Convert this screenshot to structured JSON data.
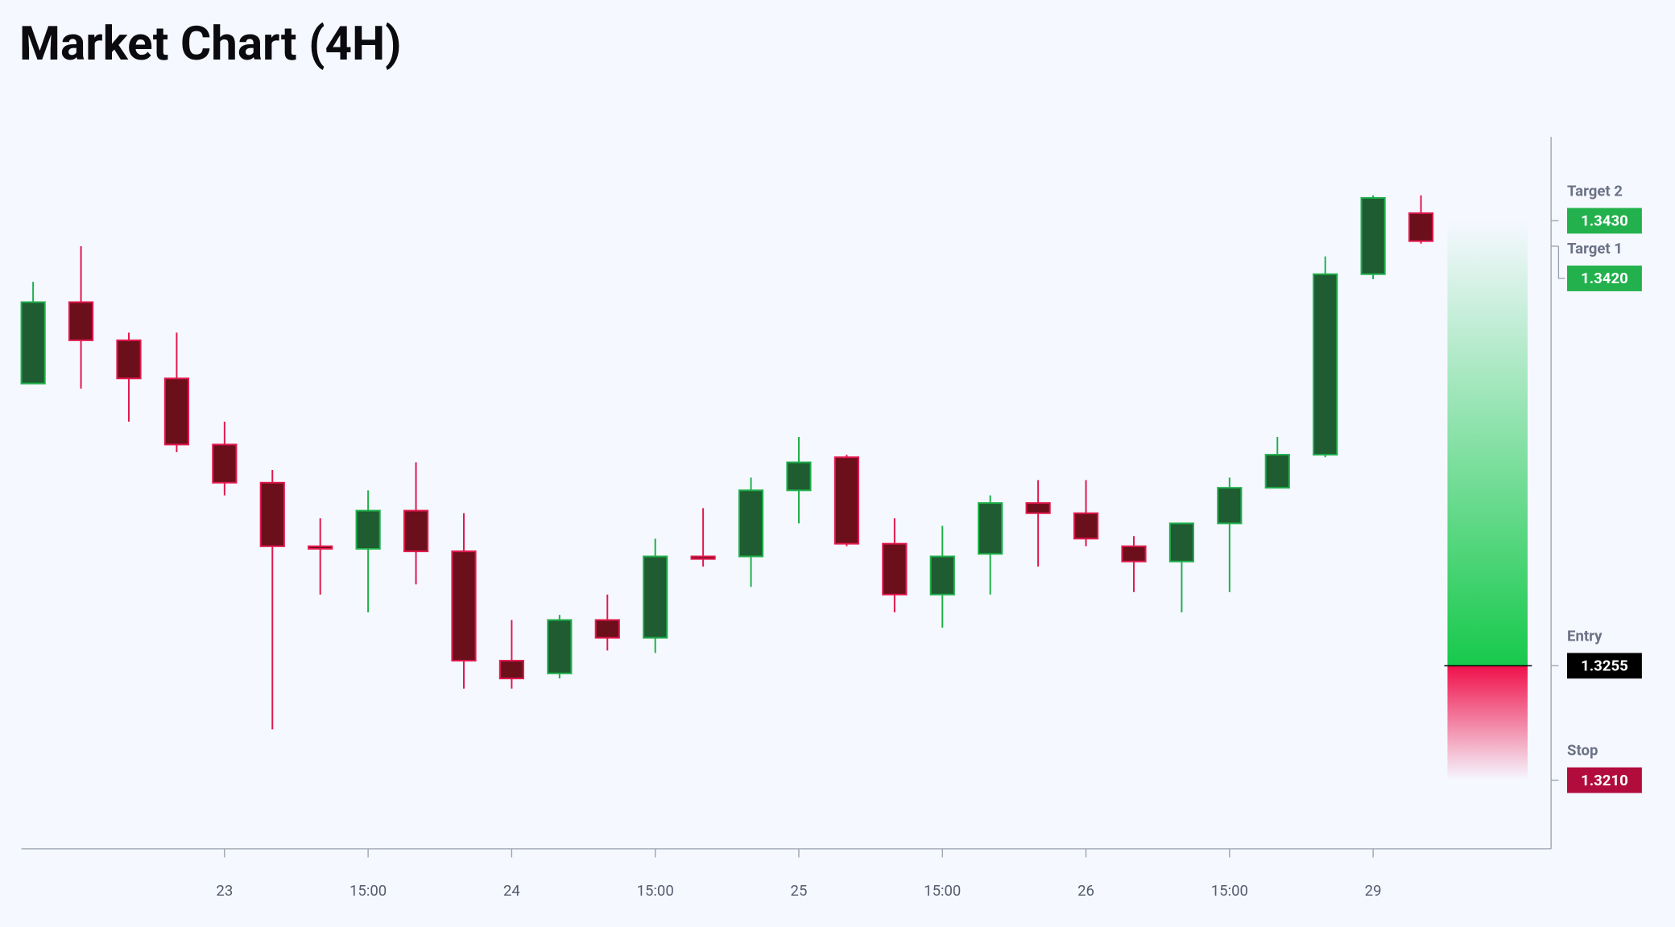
{
  "chart_data": {
    "type": "candlestick",
    "title": "Market Chart (4H)",
    "categories": [
      null,
      null,
      null,
      null,
      "23",
      null,
      null,
      "15:00",
      null,
      null,
      "24",
      null,
      null,
      "15:00",
      null,
      null,
      "25",
      null,
      null,
      "15:00",
      null,
      null,
      "26",
      null,
      null,
      "15:00",
      null,
      null,
      "29",
      null
    ],
    "series": [
      {
        "open": [
          1.3366,
          1.3398,
          1.3383,
          1.3368,
          1.3342,
          1.3327,
          1.3302,
          1.3301,
          1.3316,
          1.33,
          1.3257,
          1.3252,
          1.3273,
          1.3266,
          1.3298,
          1.3298,
          1.3324,
          1.3337,
          1.3303,
          1.3283,
          1.3299,
          1.3319,
          1.3315,
          1.3302,
          1.3296,
          1.3311,
          1.3325,
          1.3338,
          1.3409,
          1.3433
        ],
        "high": [
          1.3406,
          1.342,
          1.3386,
          1.3386,
          1.3351,
          1.3332,
          1.3313,
          1.3324,
          1.3335,
          1.3315,
          1.3273,
          1.3275,
          1.3283,
          1.3305,
          1.3317,
          1.3329,
          1.3345,
          1.3338,
          1.3313,
          1.331,
          1.3322,
          1.3328,
          1.3328,
          1.3306,
          1.3311,
          1.3329,
          1.3345,
          1.3416,
          1.344,
          1.344
        ],
        "low": [
          1.3366,
          1.3364,
          1.3351,
          1.3339,
          1.3322,
          1.323,
          1.3283,
          1.3276,
          1.3287,
          1.3246,
          1.3246,
          1.325,
          1.3261,
          1.326,
          1.3294,
          1.3286,
          1.3311,
          1.3302,
          1.3276,
          1.327,
          1.3283,
          1.3294,
          1.3302,
          1.3284,
          1.3276,
          1.3284,
          1.3325,
          1.3337,
          1.3407,
          1.3421
        ],
        "close": [
          1.3398,
          1.3383,
          1.3368,
          1.3342,
          1.3327,
          1.3302,
          1.3301,
          1.3316,
          1.33,
          1.3257,
          1.325,
          1.3273,
          1.3266,
          1.3298,
          1.3297,
          1.3324,
          1.3335,
          1.3303,
          1.3283,
          1.3298,
          1.3319,
          1.3315,
          1.3305,
          1.3296,
          1.3311,
          1.3325,
          1.3338,
          1.3409,
          1.3439,
          1.3422
        ]
      }
    ],
    "up_color": "#1f5c31",
    "up_edge": "#1fb04b",
    "down_color": "#6b0f1a",
    "down_edge": "#e2184d",
    "ylim": [
      1.3183,
      1.3463
    ],
    "levels": [
      {
        "name": "Target 2",
        "value": 1.343,
        "label": "1.3430",
        "color": "#22b14c"
      },
      {
        "name": "Target 1",
        "value": 1.342,
        "label": "1.3420",
        "color": "#22b14c"
      },
      {
        "name": "Entry",
        "value": 1.3255,
        "label": "1.3255",
        "color": "#000000"
      },
      {
        "name": "Stop",
        "value": 1.321,
        "label": "1.3210",
        "color": "#b20c3c"
      }
    ],
    "profit_color": "#17c94c",
    "loss_color": "#f0104a"
  }
}
